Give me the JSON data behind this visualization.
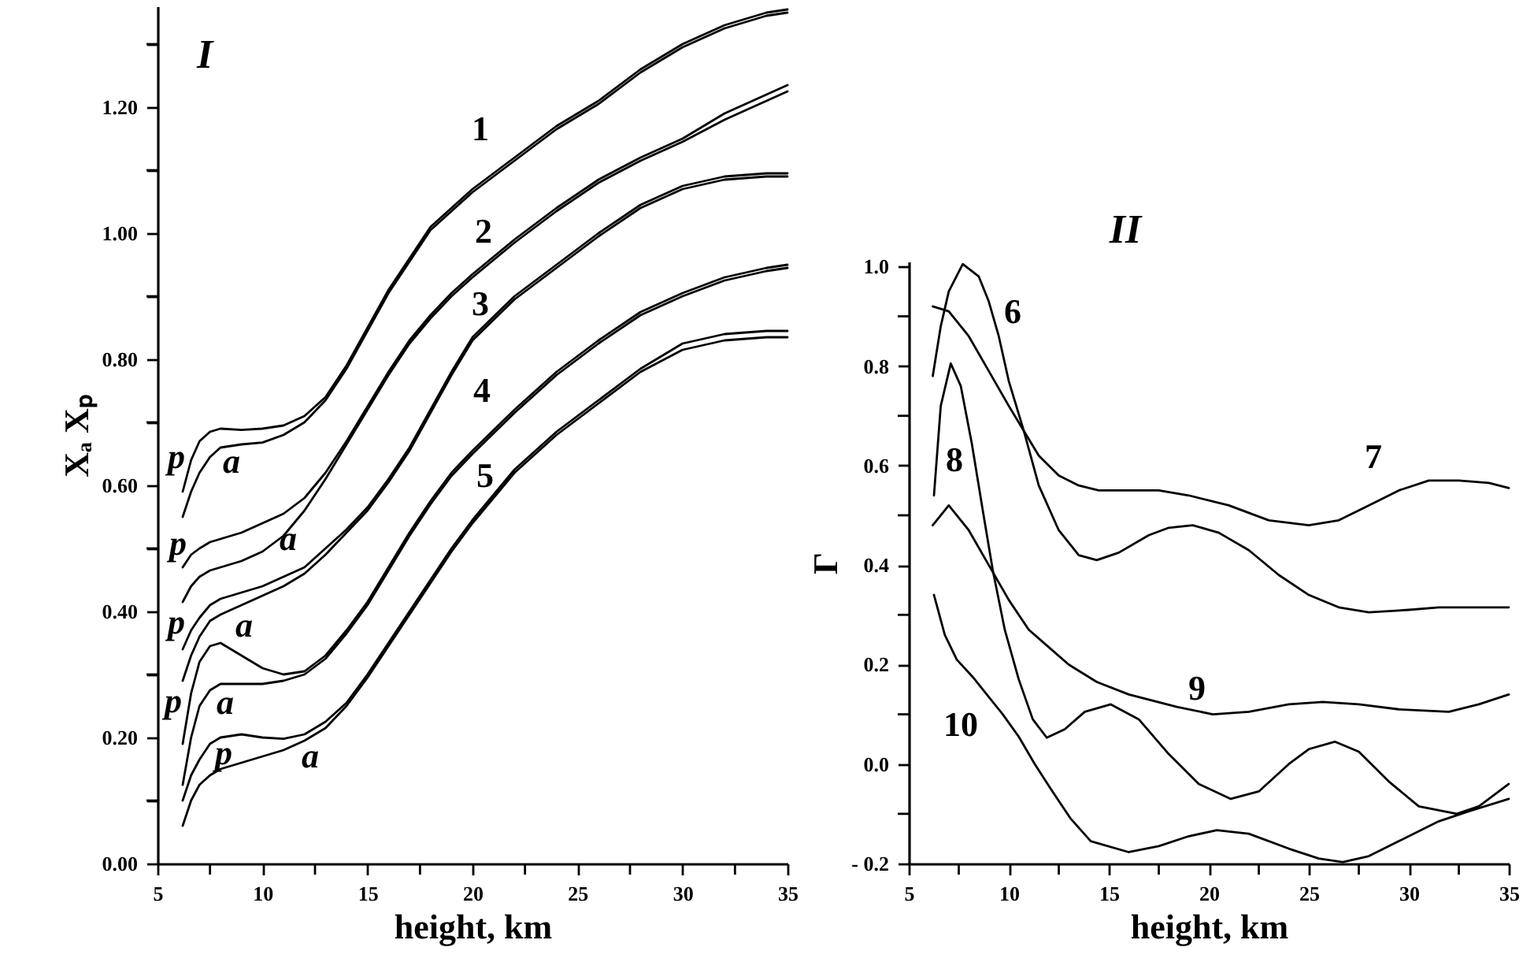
{
  "chart_data": [
    {
      "type": "line",
      "title": "I",
      "xlabel": "height, km",
      "ylabel": "Xₐ   Xₚ",
      "x": [
        6.2,
        6.6,
        7,
        7.5,
        8,
        9,
        10,
        11,
        12,
        13,
        14,
        15,
        16,
        17,
        18,
        19,
        20,
        22,
        24,
        26,
        28,
        30,
        32,
        34,
        35
      ],
      "series": [
        {
          "color": "#000000",
          "values": [
            0.59,
            0.64,
            0.67,
            0.685,
            0.69,
            0.688,
            0.69,
            0.695,
            0.71,
            0.74,
            0.79,
            0.85,
            0.91,
            0.96,
            1.01,
            1.04,
            1.07,
            1.12,
            1.17,
            1.21,
            1.26,
            1.3,
            1.33,
            1.35,
            1.355
          ]
        },
        {
          "color": "#000000",
          "values": [
            0.55,
            0.59,
            0.62,
            0.645,
            0.66,
            0.665,
            0.668,
            0.68,
            0.7,
            0.735,
            0.785,
            0.845,
            0.905,
            0.955,
            1.005,
            1.035,
            1.065,
            1.115,
            1.165,
            1.205,
            1.255,
            1.295,
            1.325,
            1.345,
            1.35
          ]
        },
        {
          "color": "#000000",
          "values": [
            0.47,
            0.49,
            0.5,
            0.51,
            0.515,
            0.525,
            0.54,
            0.555,
            0.58,
            0.62,
            0.67,
            0.725,
            0.78,
            0.83,
            0.87,
            0.905,
            0.935,
            0.99,
            1.04,
            1.085,
            1.12,
            1.15,
            1.19,
            1.22,
            1.235
          ]
        },
        {
          "color": "#000000",
          "values": [
            0.415,
            0.44,
            0.455,
            0.465,
            0.47,
            0.48,
            0.495,
            0.52,
            0.56,
            0.61,
            0.665,
            0.72,
            0.775,
            0.825,
            0.865,
            0.9,
            0.93,
            0.985,
            1.035,
            1.08,
            1.115,
            1.145,
            1.18,
            1.21,
            1.225
          ]
        },
        {
          "color": "#000000",
          "values": [
            0.34,
            0.37,
            0.39,
            0.41,
            0.42,
            0.43,
            0.44,
            0.455,
            0.47,
            0.5,
            0.53,
            0.565,
            0.61,
            0.66,
            0.72,
            0.78,
            0.835,
            0.9,
            0.95,
            1.0,
            1.045,
            1.075,
            1.09,
            1.095,
            1.095
          ]
        },
        {
          "color": "#000000",
          "values": [
            0.29,
            0.33,
            0.36,
            0.385,
            0.395,
            0.41,
            0.425,
            0.44,
            0.46,
            0.49,
            0.525,
            0.56,
            0.605,
            0.655,
            0.715,
            0.775,
            0.83,
            0.895,
            0.945,
            0.995,
            1.04,
            1.07,
            1.085,
            1.09,
            1.09
          ]
        },
        {
          "color": "#000000",
          "values": [
            0.19,
            0.27,
            0.32,
            0.345,
            0.35,
            0.33,
            0.31,
            0.3,
            0.305,
            0.33,
            0.37,
            0.415,
            0.47,
            0.525,
            0.575,
            0.62,
            0.655,
            0.72,
            0.78,
            0.83,
            0.875,
            0.905,
            0.93,
            0.945,
            0.95
          ]
        },
        {
          "color": "#000000",
          "values": [
            0.125,
            0.2,
            0.25,
            0.275,
            0.285,
            0.285,
            0.285,
            0.29,
            0.3,
            0.325,
            0.365,
            0.41,
            0.465,
            0.52,
            0.57,
            0.615,
            0.65,
            0.715,
            0.775,
            0.825,
            0.87,
            0.9,
            0.925,
            0.94,
            0.945
          ]
        },
        {
          "color": "#000000",
          "values": [
            0.1,
            0.14,
            0.165,
            0.19,
            0.2,
            0.205,
            0.2,
            0.198,
            0.205,
            0.225,
            0.255,
            0.3,
            0.35,
            0.4,
            0.45,
            0.5,
            0.545,
            0.625,
            0.685,
            0.735,
            0.785,
            0.825,
            0.84,
            0.845,
            0.845
          ]
        },
        {
          "color": "#000000",
          "values": [
            0.06,
            0.1,
            0.125,
            0.14,
            0.15,
            0.16,
            0.17,
            0.18,
            0.195,
            0.215,
            0.25,
            0.295,
            0.345,
            0.395,
            0.445,
            0.495,
            0.54,
            0.62,
            0.68,
            0.73,
            0.78,
            0.815,
            0.83,
            0.835,
            0.835
          ]
        }
      ],
      "annotations": [
        "1",
        "2",
        "3",
        "4",
        "5",
        "p",
        "a",
        "p",
        "a",
        "p",
        "a",
        "p",
        "a",
        "p",
        "a"
      ],
      "xlim": [
        5,
        35
      ],
      "ylim": [
        0,
        1.36
      ],
      "xticks": [
        5,
        {
          "value": 7.5,
          "label": null
        },
        10,
        {
          "value": 12.5,
          "label": null
        },
        15,
        {
          "value": 17.5,
          "label": null
        },
        20,
        {
          "value": 22.5,
          "label": null
        },
        25,
        {
          "value": 27.5,
          "label": null
        },
        30,
        {
          "value": 32.5,
          "label": null
        },
        35
      ],
      "yticks": [
        {
          "value": 0,
          "label": "0.00"
        },
        {
          "value": 0.1,
          "label": null
        },
        {
          "value": 0.2,
          "label": "0.20"
        },
        {
          "value": 0.3,
          "label": null
        },
        {
          "value": 0.4,
          "label": "0.40"
        },
        {
          "value": 0.5,
          "label": null
        },
        {
          "value": 0.6,
          "label": "0.60"
        },
        {
          "value": 0.7,
          "label": null
        },
        {
          "value": 0.8,
          "label": "0.80"
        },
        {
          "value": 0.9,
          "label": null
        },
        {
          "value": 1.0,
          "label": "1.00"
        },
        {
          "value": 1.1,
          "label": null
        },
        {
          "value": 1.2,
          "label": "1.20"
        },
        {
          "value": 1.3,
          "label": null
        }
      ]
    },
    {
      "type": "line",
      "title": "II",
      "xlabel": "height, km",
      "ylabel": "Γ",
      "series": [
        {
          "color": "#000000",
          "x": [
            6.2,
            6.6,
            7,
            7.7,
            8.5,
            9,
            9.5,
            10,
            10.75,
            11.5,
            12.5,
            13.5,
            14.4,
            15.5,
            17,
            18,
            19.2,
            20.5,
            22,
            23.5,
            25,
            26.5,
            28,
            30,
            31.5,
            33,
            35
          ],
          "values": [
            0.78,
            0.88,
            0.95,
            1.005,
            0.98,
            0.93,
            0.86,
            0.77,
            0.67,
            0.56,
            0.47,
            0.42,
            0.41,
            0.425,
            0.46,
            0.475,
            0.48,
            0.465,
            0.43,
            0.38,
            0.34,
            0.315,
            0.305,
            0.31,
            0.315,
            0.315,
            0.315
          ]
        },
        {
          "color": "#000000",
          "x": [
            6.2,
            7,
            8,
            9,
            10,
            10.75,
            11.5,
            12.5,
            13.5,
            14.5,
            16,
            17.5,
            19,
            21,
            23,
            25,
            26.5,
            28,
            29.5,
            31,
            32.5,
            34,
            35
          ],
          "values": [
            0.92,
            0.91,
            0.86,
            0.79,
            0.72,
            0.67,
            0.62,
            0.58,
            0.56,
            0.55,
            0.55,
            0.55,
            0.54,
            0.52,
            0.49,
            0.48,
            0.49,
            0.52,
            0.55,
            0.57,
            0.57,
            0.565,
            0.555
          ]
        },
        {
          "color": "#000000",
          "x": [
            6.26,
            6.6,
            7.1,
            7.6,
            8.15,
            8.7,
            9.2,
            9.8,
            10.5,
            11.2,
            11.9,
            12.8,
            13.8,
            15.1,
            16.5,
            18,
            19.5,
            21.1,
            22.5,
            24,
            25,
            26.3,
            27.5,
            29,
            30.5,
            32.4,
            33.5,
            35
          ],
          "values": [
            0.54,
            0.72,
            0.805,
            0.76,
            0.645,
            0.51,
            0.39,
            0.27,
            0.17,
            0.09,
            0.053,
            0.07,
            0.105,
            0.12,
            0.09,
            0.02,
            -0.04,
            -0.07,
            -0.055,
            0.0,
            0.03,
            0.045,
            0.025,
            -0.035,
            -0.085,
            -0.1,
            -0.085,
            -0.04
          ]
        },
        {
          "color": "#000000",
          "x": [
            6.2,
            7,
            8,
            9,
            10,
            11,
            12,
            13,
            14.4,
            16,
            18.4,
            20.2,
            22,
            24,
            25.7,
            27.5,
            29.5,
            32,
            33.5,
            35
          ],
          "values": [
            0.48,
            0.52,
            0.47,
            0.4,
            0.33,
            0.27,
            0.235,
            0.2,
            0.165,
            0.14,
            0.115,
            0.1,
            0.105,
            0.12,
            0.125,
            0.12,
            0.11,
            0.105,
            0.12,
            0.14
          ]
        },
        {
          "color": "#000000",
          "x": [
            6.26,
            6.8,
            7.4,
            8.2,
            8.9,
            9.7,
            10.5,
            11.3,
            12.1,
            13.1,
            14.1,
            16,
            17.5,
            19,
            20.4,
            22,
            24,
            25.5,
            26.7,
            28,
            29.5,
            31.5,
            33,
            35
          ],
          "values": [
            0.34,
            0.26,
            0.21,
            0.175,
            0.14,
            0.1,
            0.055,
            0.0,
            -0.05,
            -0.11,
            -0.155,
            -0.177,
            -0.165,
            -0.145,
            -0.133,
            -0.14,
            -0.17,
            -0.19,
            -0.197,
            -0.185,
            -0.155,
            -0.115,
            -0.095,
            -0.07
          ]
        }
      ],
      "annotations": [
        "6",
        "7",
        "8",
        "9",
        "10"
      ],
      "xlim": [
        5,
        35
      ],
      "ylim": [
        -0.2,
        1.01
      ],
      "xticks": [
        5,
        {
          "value": 7.5,
          "label": null
        },
        10,
        {
          "value": 12.5,
          "label": null
        },
        15,
        {
          "value": 17.5,
          "label": null
        },
        20,
        {
          "value": 22.5,
          "label": null
        },
        25,
        {
          "value": 27.5,
          "label": null
        },
        30,
        {
          "value": 32.5,
          "label": null
        },
        35
      ],
      "yticks": [
        {
          "value": -0.2,
          "label": "- 0.2"
        },
        {
          "value": -0.1,
          "label": null
        },
        {
          "value": 0,
          "label": "0.0"
        },
        {
          "value": 0.1,
          "label": null
        },
        {
          "value": 0.2,
          "label": "0.2"
        },
        {
          "value": 0.3,
          "label": null
        },
        {
          "value": 0.4,
          "label": "0.4"
        },
        {
          "value": 0.5,
          "label": null
        },
        {
          "value": 0.6,
          "label": "0.6"
        },
        {
          "value": 0.7,
          "label": null
        },
        {
          "value": 0.8,
          "label": "0.8"
        },
        {
          "value": 0.9,
          "label": null
        },
        {
          "value": 1.0,
          "label": "1.0"
        }
      ]
    }
  ]
}
